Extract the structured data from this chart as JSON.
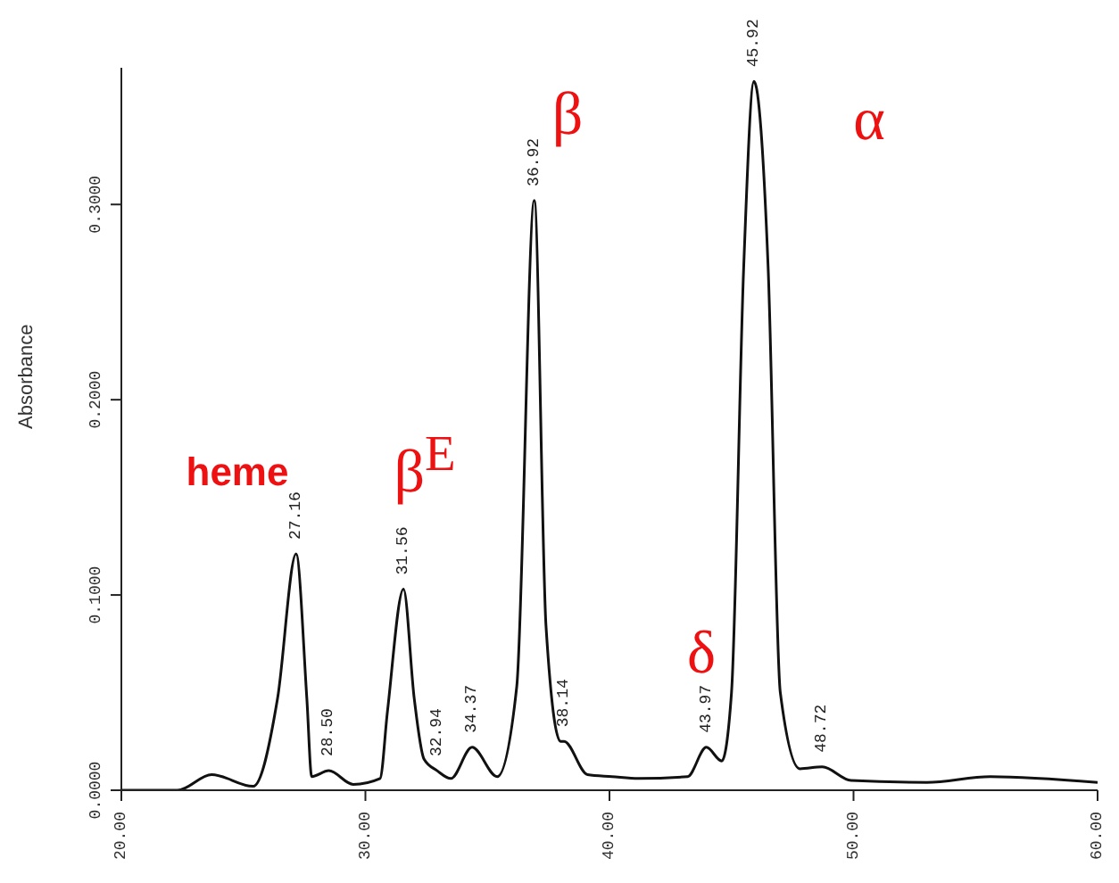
{
  "chart_data": {
    "type": "line",
    "ylabel": "Absorbance",
    "xlim": [
      20,
      60
    ],
    "xticks": [
      {
        "value": 20,
        "label": "20.00"
      },
      {
        "value": 30,
        "label": "30.00"
      },
      {
        "value": 40,
        "label": "40.00"
      },
      {
        "value": 50,
        "label": "50.00"
      },
      {
        "value": 60,
        "label": "60.00"
      }
    ],
    "ylim": [
      0,
      0.37
    ],
    "yticks": [
      {
        "value": 0,
        "label": "0.0000"
      },
      {
        "value": 0.1,
        "label": "0.1000"
      },
      {
        "value": 0.2,
        "label": "0.2000"
      },
      {
        "value": 0.3,
        "label": "0.3000"
      }
    ],
    "grid": false,
    "legend": false,
    "marker": "none",
    "line_style": "solid",
    "series": [
      {
        "color": "#111111",
        "x": [
          20,
          22.3,
          23.7,
          25.4,
          26.4,
          27.16,
          27.6,
          27.8,
          28.5,
          29.5,
          30.6,
          30.9,
          31.56,
          32.0,
          32.4,
          32.94,
          33.5,
          34.37,
          35.4,
          36.2,
          36.92,
          37.4,
          38.0,
          38.14,
          39.1,
          40.1,
          41.2,
          43.2,
          43.97,
          44.6,
          45.0,
          45.5,
          45.92,
          46.5,
          47.0,
          47.8,
          48.72,
          49.9,
          53.0,
          55.6,
          60
        ],
        "values": [
          0.0,
          0.0,
          0.008,
          0.002,
          0.047,
          0.121,
          0.047,
          0.007,
          0.01,
          0.003,
          0.006,
          0.04,
          0.103,
          0.047,
          0.016,
          0.01,
          0.006,
          0.022,
          0.007,
          0.053,
          0.302,
          0.084,
          0.025,
          0.025,
          0.008,
          0.007,
          0.006,
          0.007,
          0.022,
          0.015,
          0.05,
          0.268,
          0.363,
          0.268,
          0.05,
          0.011,
          0.012,
          0.005,
          0.004,
          0.007,
          0.004
        ]
      }
    ],
    "annotations": [
      {
        "text": "27.16",
        "x": 27.16,
        "y": 0.121
      },
      {
        "text": "28.50",
        "x": 28.5,
        "y": 0.01
      },
      {
        "text": "31.56",
        "x": 31.56,
        "y": 0.103
      },
      {
        "text": "32.94",
        "x": 32.94,
        "y": 0.01
      },
      {
        "text": "34.37",
        "x": 34.37,
        "y": 0.022
      },
      {
        "text": "36.92",
        "x": 36.92,
        "y": 0.302
      },
      {
        "text": "38.14",
        "x": 38.14,
        "y": 0.025
      },
      {
        "text": "43.97",
        "x": 43.97,
        "y": 0.022
      },
      {
        "text": "45.92",
        "x": 45.92,
        "y": 0.363
      },
      {
        "text": "48.72",
        "x": 48.72,
        "y": 0.012
      },
      "heme",
      "β$^{E}$",
      "β",
      "δ",
      "α"
    ]
  }
}
